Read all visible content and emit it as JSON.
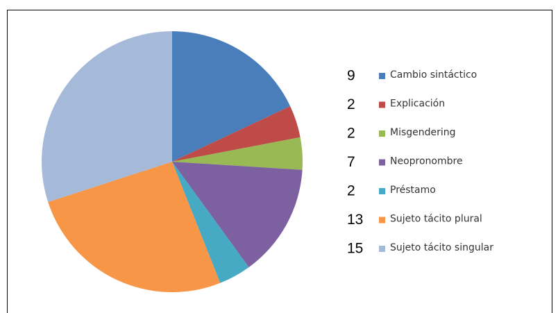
{
  "chart_data": {
    "type": "pie",
    "categories": [
      "Cambio sintáctico",
      "Explicación",
      "Misgendering",
      "Neopronombre",
      "Préstamo",
      "Sujeto tácito plural",
      "Sujeto tácito singular"
    ],
    "values": [
      9,
      2,
      2,
      7,
      2,
      13,
      15
    ],
    "colors": [
      "#4a7ebb",
      "#be4b48",
      "#98b954",
      "#7d60a0",
      "#46aac5",
      "#f79646",
      "#a5b9d9"
    ],
    "legend": "right"
  }
}
